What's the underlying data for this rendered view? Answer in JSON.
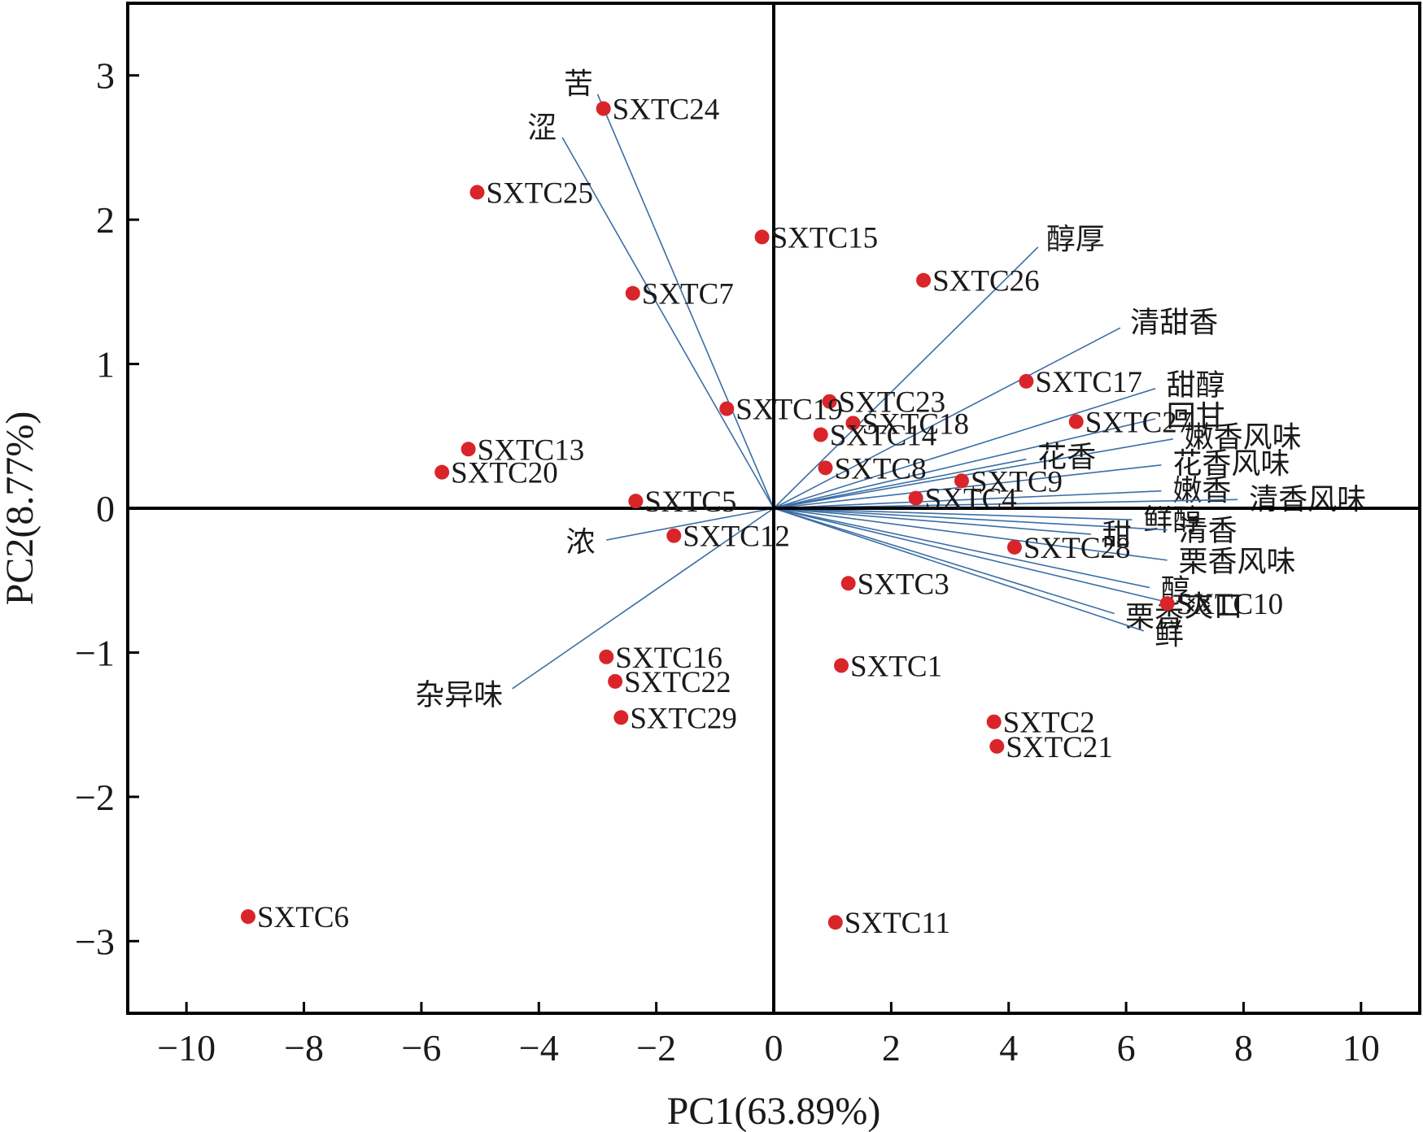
{
  "chart_data": {
    "type": "scatter",
    "subtype": "pca-biplot",
    "xlabel": "PC1(63.89%)",
    "ylabel": "PC2(8.77%)",
    "xlim": [
      -11,
      11
    ],
    "ylim": [
      -3.5,
      3.5
    ],
    "xticks": [
      -10,
      -8,
      -6,
      -4,
      -2,
      0,
      2,
      4,
      6,
      8,
      10
    ],
    "yticks": [
      -3,
      -2,
      -1,
      0,
      1,
      2,
      3
    ],
    "xtick_labels": [
      "−10",
      "−8",
      "−6",
      "−4",
      "−2",
      "0",
      "2",
      "4",
      "6",
      "8",
      "10"
    ],
    "ytick_labels": [
      "−3",
      "−2",
      "−1",
      "0",
      "1",
      "2",
      "3"
    ],
    "zero_lines": true,
    "point_color": "#d9252a",
    "loading_color": "#3b6ea5",
    "points": [
      {
        "label": "SXTC24",
        "x": -2.9,
        "y": 2.77
      },
      {
        "label": "SXTC25",
        "x": -5.05,
        "y": 2.19
      },
      {
        "label": "SXTC15",
        "x": -0.2,
        "y": 1.88
      },
      {
        "label": "SXTC7",
        "x": -2.4,
        "y": 1.49
      },
      {
        "label": "SXTC26",
        "x": 2.55,
        "y": 1.58
      },
      {
        "label": "SXTC17",
        "x": 4.3,
        "y": 0.88
      },
      {
        "label": "SXTC23",
        "x": 0.95,
        "y": 0.74
      },
      {
        "label": "SXTC27",
        "x": 5.15,
        "y": 0.6
      },
      {
        "label": "SXTC19",
        "x": -0.8,
        "y": 0.69
      },
      {
        "label": "SXTC18",
        "x": 1.35,
        "y": 0.59
      },
      {
        "label": "SXTC14",
        "x": 0.8,
        "y": 0.51
      },
      {
        "label": "SXTC13",
        "x": -5.2,
        "y": 0.41
      },
      {
        "label": "SXTC20",
        "x": -5.65,
        "y": 0.25
      },
      {
        "label": "SXTC8",
        "x": 0.88,
        "y": 0.28
      },
      {
        "label": "SXTC9",
        "x": 3.2,
        "y": 0.19
      },
      {
        "label": "SXTC4",
        "x": 2.42,
        "y": 0.07
      },
      {
        "label": "SXTC5",
        "x": -2.35,
        "y": 0.05
      },
      {
        "label": "SXTC12",
        "x": -1.7,
        "y": -0.19
      },
      {
        "label": "SXTC28",
        "x": 4.1,
        "y": -0.27
      },
      {
        "label": "SXTC3",
        "x": 1.27,
        "y": -0.52
      },
      {
        "label": "SXTC10",
        "x": 6.7,
        "y": -0.66
      },
      {
        "label": "SXTC16",
        "x": -2.85,
        "y": -1.03
      },
      {
        "label": "SXTC1",
        "x": 1.15,
        "y": -1.09
      },
      {
        "label": "SXTC22",
        "x": -2.7,
        "y": -1.2
      },
      {
        "label": "SXTC29",
        "x": -2.6,
        "y": -1.45
      },
      {
        "label": "SXTC2",
        "x": 3.75,
        "y": -1.48
      },
      {
        "label": "SXTC21",
        "x": 3.8,
        "y": -1.65
      },
      {
        "label": "SXTC6",
        "x": -8.95,
        "y": -2.83
      },
      {
        "label": "SXTC11",
        "x": 1.05,
        "y": -2.87
      }
    ],
    "loadings": [
      {
        "label": "苦",
        "x": -3.0,
        "y": 2.87
      },
      {
        "label": "涩",
        "x": -3.6,
        "y": 2.57
      },
      {
        "label": "醇厚",
        "x": 4.5,
        "y": 1.81
      },
      {
        "label": "清甜香",
        "x": 5.9,
        "y": 1.25
      },
      {
        "label": "甜醇",
        "x": 6.5,
        "y": 0.83
      },
      {
        "label": "回甘",
        "x": 6.5,
        "y": 0.62
      },
      {
        "label": "嫩香风味",
        "x": 6.8,
        "y": 0.48
      },
      {
        "label": "花香",
        "x": 4.3,
        "y": 0.34
      },
      {
        "label": "花香风味",
        "x": 6.6,
        "y": 0.3
      },
      {
        "label": "嫩香",
        "x": 6.6,
        "y": 0.12
      },
      {
        "label": "清香风味",
        "x": 7.9,
        "y": 0.06
      },
      {
        "label": "鲜醇",
        "x": 6.1,
        "y": -0.08
      },
      {
        "label": "清香",
        "x": 6.7,
        "y": -0.15
      },
      {
        "label": "甜",
        "x": 5.4,
        "y": -0.18
      },
      {
        "label": "栗香风味",
        "x": 6.7,
        "y": -0.36
      },
      {
        "label": "醇",
        "x": 6.4,
        "y": -0.55
      },
      {
        "label": "爽口",
        "x": 6.8,
        "y": -0.66
      },
      {
        "label": "栗香",
        "x": 5.8,
        "y": -0.73
      },
      {
        "label": "鲜",
        "x": 6.3,
        "y": -0.85
      },
      {
        "label": "浓",
        "x": -2.85,
        "y": -0.22
      },
      {
        "label": "杂异味",
        "x": -4.45,
        "y": -1.25
      }
    ]
  }
}
